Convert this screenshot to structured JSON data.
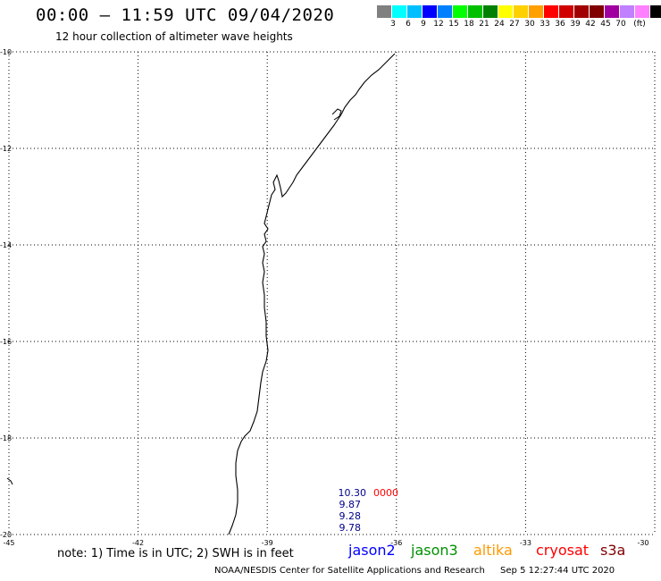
{
  "header": {
    "title": "00:00 – 11:59 UTC 09/04/2020",
    "subtitle": "12 hour collection of altimeter wave heights"
  },
  "legend": {
    "colors": [
      "#808080",
      "#00ffff",
      "#00bfff",
      "#0000ff",
      "#0080ff",
      "#00ff00",
      "#00c000",
      "#008000",
      "#ffff00",
      "#ffd000",
      "#ffa000",
      "#ff0000",
      "#d00000",
      "#a00000",
      "#800000",
      "#a000a0",
      "#c080ff",
      "#ff80ff",
      "#000000"
    ],
    "labels": [
      "3",
      "6",
      "9",
      "12",
      "15",
      "18",
      "21",
      "24",
      "27",
      "30",
      "33",
      "36",
      "39",
      "42",
      "45",
      "70",
      "(ft)"
    ]
  },
  "map": {
    "lat_labels": [
      "-10",
      "-12",
      "-14",
      "-16",
      "-18",
      "-20"
    ],
    "lon_labels": [
      "-45",
      "-42",
      "-39",
      "-36",
      "-33",
      "-30"
    ],
    "lat_range": [
      -20,
      -10
    ],
    "lon_range": [
      -45,
      -30
    ],
    "grid": "dotted"
  },
  "observations": {
    "swh_values": [
      "10.30",
      "9.87",
      "9.28",
      "9.78"
    ],
    "flag_text": "0000"
  },
  "notes": {
    "note": "note:  1) Time is in UTC;  2) SWH is in feet"
  },
  "satellites": [
    {
      "name": "jason2",
      "color": "#0000ff"
    },
    {
      "name": "jason3",
      "color": "#009000"
    },
    {
      "name": "altika",
      "color": "#ff9900"
    },
    {
      "name": "cryosat",
      "color": "#ff0000"
    },
    {
      "name": "s3a",
      "color": "#800000"
    }
  ],
  "footer": {
    "credit": "NOAA/NESDIS Center for Satellite Applications and Research",
    "timestamp": "Sep  5 12:27:44 UTC 2020"
  }
}
